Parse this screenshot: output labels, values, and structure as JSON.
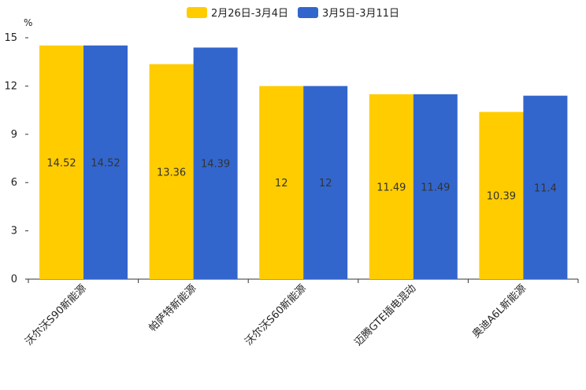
{
  "chart_data": {
    "type": "bar",
    "unit": "%",
    "categories": [
      "沃尔沃S90新能源",
      "帕萨特新能源",
      "沃尔沃S60新能源",
      "迈腾GTE插电混动",
      "奥迪A6L新能源"
    ],
    "series": [
      {
        "name": "2月26日-3月4日",
        "color": "#ffcc00",
        "values": [
          14.52,
          13.36,
          12,
          11.49,
          10.39
        ],
        "labels": [
          "14.52",
          "13.36",
          "12",
          "11.49",
          "10.39"
        ]
      },
      {
        "name": "3月5日-3月11日",
        "color": "#3366cc",
        "values": [
          14.52,
          14.39,
          12,
          11.49,
          11.4
        ],
        "labels": [
          "14.52",
          "14.39",
          "12",
          "11.49",
          "11.4"
        ]
      }
    ],
    "yticks": [
      0,
      3,
      6,
      9,
      12,
      15
    ],
    "ylim": [
      0,
      15
    ],
    "grid": false,
    "legend_position": "top"
  }
}
